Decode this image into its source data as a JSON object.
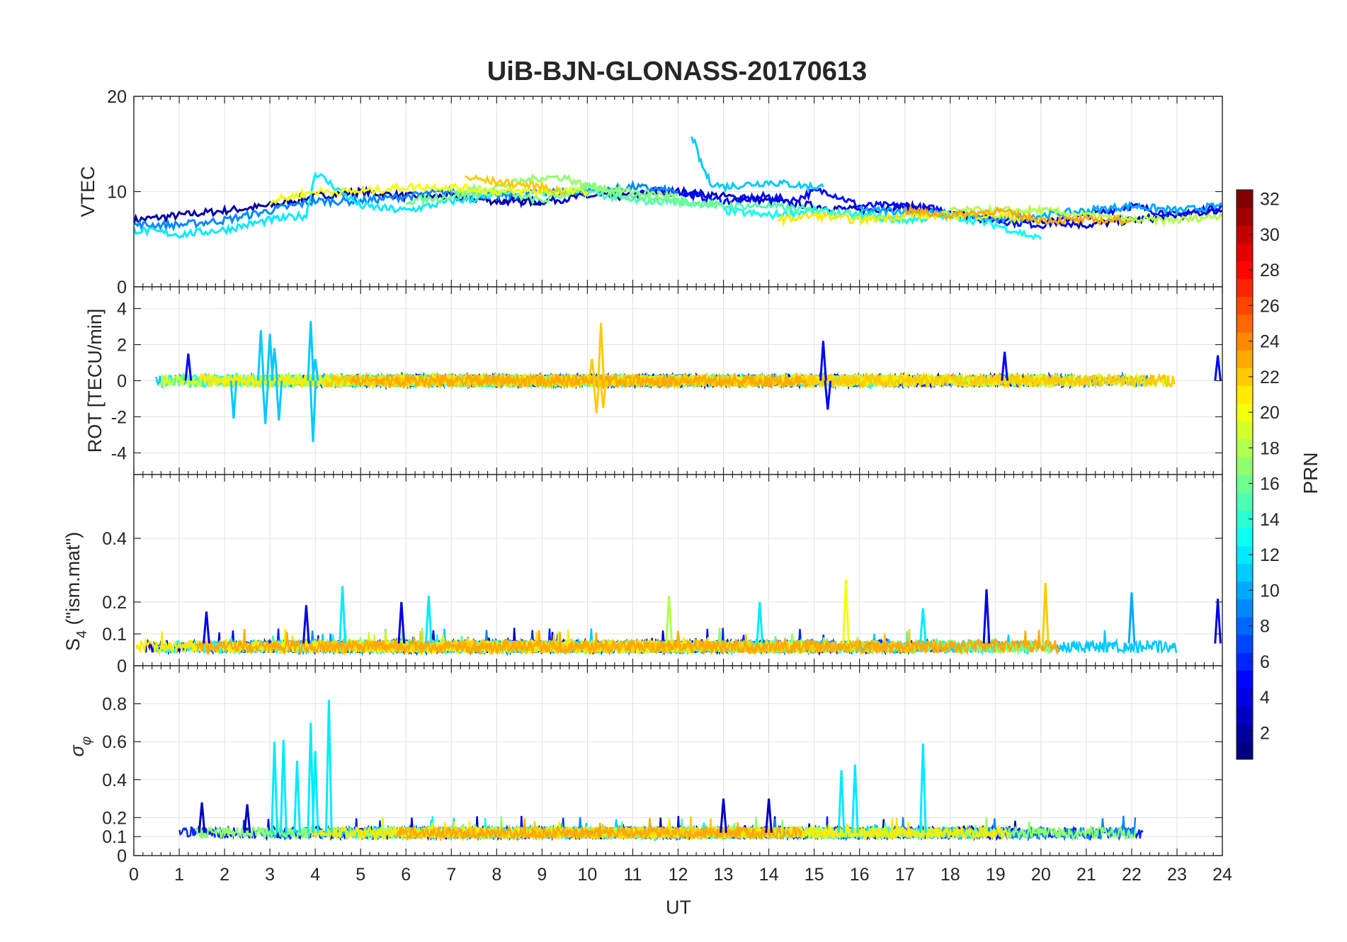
{
  "title": "UiB-BJN-GLONASS-20170613",
  "xlabel": "UT",
  "colorbar": {
    "label": "PRN",
    "range": [
      1,
      32
    ],
    "ticks": [
      "2",
      "4",
      "6",
      "8",
      "10",
      "12",
      "14",
      "16",
      "18",
      "20",
      "22",
      "24",
      "26",
      "28",
      "30",
      "32"
    ],
    "colormap": "jet"
  },
  "chart_data": [
    {
      "type": "line",
      "panel": "VTEC",
      "ylabel": "VTEC",
      "xlim": [
        0,
        24
      ],
      "ylim": [
        0,
        20
      ],
      "yticks": [
        "0",
        "10",
        "20"
      ],
      "grid": true,
      "series": [
        {
          "prn": 2,
          "x": [
            0,
            1,
            2,
            3,
            4,
            5,
            6,
            7,
            8,
            9
          ],
          "y": [
            7,
            7.5,
            8,
            8.5,
            9.5,
            10,
            9.5,
            9.5,
            9,
            9
          ]
        },
        {
          "prn": 3,
          "x": [
            8,
            9,
            10,
            11,
            12,
            13,
            14,
            15,
            16,
            17,
            18,
            19,
            20,
            21,
            22,
            23,
            24
          ],
          "y": [
            9,
            9,
            9.5,
            9.5,
            10,
            9.5,
            9,
            8.5,
            8,
            8.5,
            7.5,
            7,
            7,
            6.5,
            7,
            7.5,
            8
          ]
        },
        {
          "prn": 5,
          "x": [
            11,
            12,
            13,
            14,
            14.5,
            15,
            15.3,
            16,
            17,
            18,
            19,
            20,
            21,
            22,
            23,
            24
          ],
          "y": [
            10,
            10,
            9,
            9.5,
            9,
            10,
            10,
            8.5,
            8.5,
            8,
            7,
            6.5,
            7.5,
            8.5,
            7.5,
            8.5
          ]
        },
        {
          "prn": 9,
          "x": [
            0,
            1,
            2,
            3,
            4,
            5,
            6,
            7,
            8,
            9,
            10,
            11,
            12
          ],
          "y": [
            6.5,
            6.5,
            7,
            8,
            9,
            9,
            9.5,
            10,
            9.5,
            10,
            10,
            10.5,
            10
          ]
        },
        {
          "prn": 10,
          "x": [
            16,
            17,
            18,
            19,
            20,
            21,
            22,
            23,
            24
          ],
          "y": [
            8,
            8,
            7.5,
            7,
            7.5,
            8,
            8.5,
            8,
            8.5
          ]
        },
        {
          "prn": 11,
          "x": [
            12.3,
            12.5,
            12.7,
            13,
            14,
            15,
            15.2
          ],
          "y": [
            16,
            13,
            11,
            10.5,
            11,
            10.5,
            10.5
          ]
        },
        {
          "prn": 12,
          "x": [
            0,
            1,
            2,
            3,
            3.8,
            4,
            5,
            6,
            7,
            8
          ],
          "y": [
            6,
            5.5,
            6,
            7,
            7.5,
            12,
            8.5,
            8,
            9,
            9.5
          ]
        },
        {
          "prn": 13,
          "x": [
            13,
            14,
            15,
            16,
            17,
            18,
            19,
            20
          ],
          "y": [
            8,
            7.5,
            8,
            7.5,
            7,
            7.5,
            6.5,
            5
          ]
        },
        {
          "prn": 15,
          "x": [
            9,
            10,
            11,
            12,
            13,
            14,
            15,
            16,
            17
          ],
          "y": [
            10,
            10,
            9,
            9,
            8.5,
            8.5,
            8,
            7.5,
            7
          ]
        },
        {
          "prn": 16,
          "x": [
            6,
            7,
            8,
            9,
            10,
            11,
            12,
            13
          ],
          "y": [
            9,
            9.5,
            10,
            9,
            10.5,
            9.5,
            9,
            8.5
          ]
        },
        {
          "prn": 17,
          "x": [
            7,
            8,
            9,
            9.5,
            10,
            11,
            12
          ],
          "y": [
            10,
            10.5,
            11.5,
            11.5,
            10.5,
            10,
            9.5
          ]
        },
        {
          "prn": 18,
          "x": [
            18,
            19,
            20,
            21,
            22,
            23,
            24
          ],
          "y": [
            8,
            8,
            8,
            7.5,
            7,
            7,
            7.5
          ]
        },
        {
          "prn": 20,
          "x": [
            3,
            4,
            5,
            6,
            7,
            8,
            9,
            10
          ],
          "y": [
            9,
            10,
            10,
            10.5,
            10.5,
            10,
            10,
            10
          ]
        },
        {
          "prn": 21,
          "x": [
            14.2,
            15,
            16,
            17,
            18,
            19,
            20
          ],
          "y": [
            7,
            7.5,
            7,
            7.5,
            7.5,
            7.5,
            7
          ]
        },
        {
          "prn": 22,
          "x": [
            7.3,
            8,
            9,
            9.5
          ],
          "y": [
            11.5,
            11,
            10.5,
            10
          ]
        },
        {
          "prn": 23,
          "x": [
            17,
            18,
            19,
            20,
            21,
            22
          ],
          "y": [
            8,
            7.5,
            8,
            7,
            7,
            7
          ]
        }
      ]
    },
    {
      "type": "line",
      "panel": "ROT",
      "ylabel": "ROT [TECU/min]",
      "xlim": [
        0,
        24
      ],
      "ylim": [
        -5.2,
        5.2
      ],
      "yticks": [
        "-4",
        "-2",
        "0",
        "2",
        "4"
      ],
      "grid": true,
      "series": [
        {
          "prn": 2,
          "label": "baseline scatter",
          "noise": 0.35
        },
        {
          "prn": 11,
          "x": [
            2.2,
            2.8,
            2.9,
            3.0,
            3.1,
            3.2,
            3.9,
            3.95,
            4.0
          ],
          "y": [
            -2.1,
            2.8,
            -2.4,
            2.6,
            1.8,
            -2.2,
            3.3,
            -3.4,
            1.2
          ]
        },
        {
          "prn": 5,
          "x": [
            1.2,
            15.2,
            15.3,
            19.2,
            23.9
          ],
          "y": [
            1.5,
            2.2,
            -1.6,
            1.6,
            1.4
          ]
        },
        {
          "prn": 22,
          "x": [
            10.1,
            10.2,
            10.3,
            10.35
          ],
          "y": [
            1.2,
            -1.8,
            3.2,
            -1.5
          ]
        }
      ]
    },
    {
      "type": "line",
      "panel": "S4",
      "ylabel": "S4 (\"ism.mat\")",
      "xlim": [
        0,
        24
      ],
      "ylim": [
        0,
        0.6
      ],
      "yticks": [
        "0",
        "0.1",
        "0.2",
        "0.4"
      ],
      "grid": true,
      "series": [
        {
          "prn": 2,
          "label": "baseline",
          "level": 0.06,
          "noise": 0.02
        },
        {
          "prn": 12,
          "x": [
            4.6,
            6.5,
            13.8,
            17.4
          ],
          "y": [
            0.25,
            0.22,
            0.2,
            0.18
          ]
        },
        {
          "prn": 4,
          "x": [
            1.6,
            3.8,
            5.9,
            18.8,
            23.9
          ],
          "y": [
            0.17,
            0.19,
            0.2,
            0.24,
            0.21
          ]
        },
        {
          "prn": 20,
          "x": [
            15.7
          ],
          "y": [
            0.27
          ]
        },
        {
          "prn": 22,
          "x": [
            20.1
          ],
          "y": [
            0.26
          ]
        },
        {
          "prn": 18,
          "x": [
            11.8
          ],
          "y": [
            0.22
          ]
        },
        {
          "prn": 10,
          "x": [
            22.0
          ],
          "y": [
            0.23
          ]
        }
      ]
    },
    {
      "type": "line",
      "panel": "sigma_phi",
      "ylabel": "σφ",
      "xlim": [
        0,
        24
      ],
      "ylim": [
        0,
        1
      ],
      "yticks": [
        "0",
        "0.1",
        "0.2",
        "0.4",
        "0.6",
        "0.8"
      ],
      "xticks": [
        "0",
        "1",
        "2",
        "3",
        "4",
        "5",
        "6",
        "7",
        "8",
        "9",
        "10",
        "11",
        "12",
        "13",
        "14",
        "15",
        "16",
        "17",
        "18",
        "19",
        "20",
        "21",
        "22",
        "23",
        "24"
      ],
      "grid": true,
      "series": [
        {
          "prn": 2,
          "label": "baseline",
          "level": 0.12,
          "noise": 0.03
        },
        {
          "prn": 12,
          "x": [
            3.1,
            3.3,
            3.6,
            3.9,
            4.0,
            4.3,
            15.6,
            15.9,
            17.4
          ],
          "y": [
            0.6,
            0.61,
            0.5,
            0.7,
            0.55,
            0.82,
            0.45,
            0.48,
            0.59
          ]
        },
        {
          "prn": 3,
          "x": [
            1.5,
            2.5,
            13,
            14
          ],
          "y": [
            0.28,
            0.27,
            0.3,
            0.3
          ]
        }
      ]
    }
  ]
}
